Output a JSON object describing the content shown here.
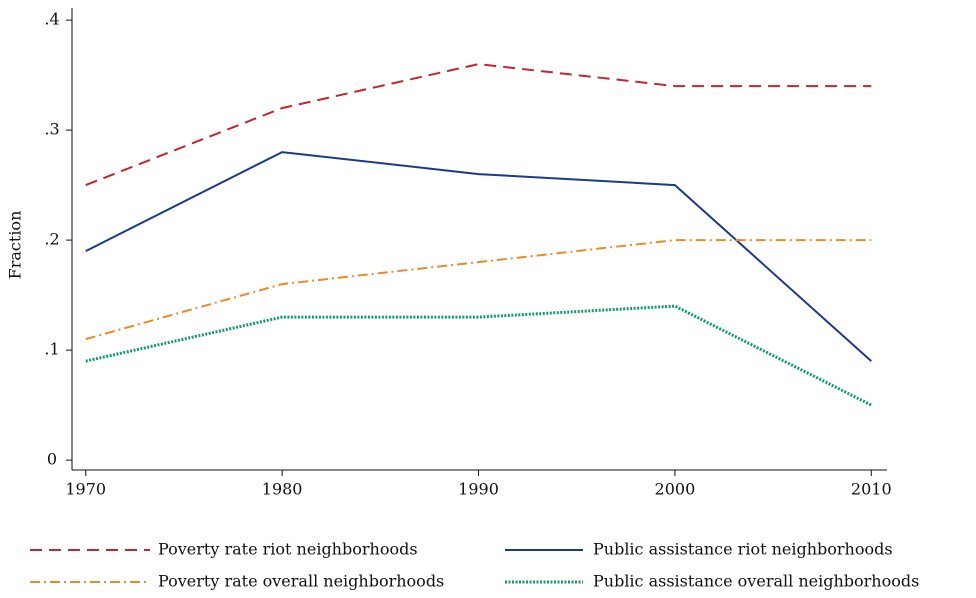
{
  "chart_data": {
    "type": "line",
    "y_label": "Fraction",
    "x": [
      1970,
      1980,
      1990,
      2000,
      2010
    ],
    "xlim": [
      1969.3,
      2010.8
    ],
    "xticks": [
      1970,
      1980,
      1990,
      2000,
      2010
    ],
    "ylim": [
      -0.009,
      0.411
    ],
    "yticks": [
      0,
      {
        "value": 0.1,
        "label": ".1"
      },
      {
        "value": 0.2,
        "label": ".2"
      },
      {
        "value": 0.3,
        "label": ".3"
      },
      {
        "value": 0.4,
        "label": ".4"
      }
    ],
    "grid": false,
    "legend": "bottom",
    "series": [
      {
        "name": "Poverty rate riot neighborhoods",
        "color": "#c1272d",
        "style": "dashed",
        "values": [
          0.25,
          0.32,
          0.36,
          0.34,
          0.34
        ]
      },
      {
        "name": "Public assistance riot neighborhoods",
        "color": "#1c3a8a",
        "style": "solid",
        "values": [
          0.19,
          0.28,
          0.26,
          0.25,
          0.09
        ]
      },
      {
        "name": "Poverty rate overall neighborhoods",
        "color": "#ea8a2a",
        "style": "dashdot",
        "values": [
          0.11,
          0.16,
          0.18,
          0.2,
          0.2
        ]
      },
      {
        "name": "Public assistance overall neighborhoods",
        "color": "#119a78",
        "style": "dotted",
        "values": [
          0.09,
          0.13,
          0.13,
          0.14,
          0.05
        ]
      }
    ]
  }
}
